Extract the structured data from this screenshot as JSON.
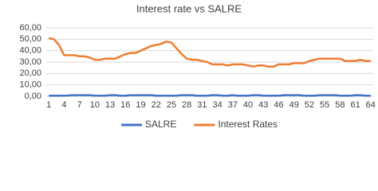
{
  "chart_data": {
    "type": "line",
    "title": "Interest rate vs SALRE",
    "categories": [
      "1",
      null,
      null,
      "4",
      null,
      null,
      "7",
      null,
      null,
      "10",
      null,
      null,
      "13",
      null,
      null,
      "16",
      null,
      null,
      "19",
      null,
      null,
      "22",
      null,
      null,
      "25",
      null,
      null,
      "28",
      null,
      null,
      "31",
      null,
      null,
      "34",
      null,
      null,
      "37",
      null,
      null,
      "40",
      null,
      null,
      "43",
      null,
      null,
      "46",
      null,
      null,
      "49",
      null,
      null,
      "52",
      null,
      null,
      "55",
      null,
      null,
      "58",
      null,
      null,
      "61",
      null,
      null,
      "64"
    ],
    "series": [
      {
        "name": "SALRE",
        "color": "#4472c4",
        "values": [
          0.5,
          0.5,
          0.5,
          0.5,
          0.8,
          1,
          1,
          1,
          1,
          0.5,
          0.5,
          0.5,
          1,
          1,
          0.5,
          0.5,
          1,
          1,
          1,
          1,
          1,
          0.5,
          0.5,
          0.5,
          0.5,
          0.5,
          1,
          1,
          1,
          0.5,
          0.5,
          0.5,
          1,
          1,
          0.5,
          0.5,
          1,
          0.5,
          0.5,
          0.5,
          1,
          1,
          0.5,
          0.5,
          0.5,
          0.5,
          1,
          1,
          1,
          1,
          0.5,
          0.5,
          0.5,
          1,
          1,
          1,
          1,
          0.5,
          0.5,
          0.5,
          1,
          1,
          0.5,
          0.5
        ]
      },
      {
        "name": "Interest Rates",
        "color": "#ed7d31",
        "values": [
          51,
          50,
          45,
          36,
          36,
          36,
          35,
          35,
          34,
          32,
          32,
          33,
          33,
          33,
          35,
          37,
          38,
          38,
          40,
          42,
          44,
          45,
          46,
          48,
          47,
          42,
          37,
          33,
          32,
          32,
          31,
          30,
          28,
          28,
          28,
          27,
          28,
          28,
          28,
          27,
          26,
          27,
          27,
          26,
          26,
          28,
          28,
          28,
          29,
          29,
          29,
          31,
          32,
          33,
          33,
          33,
          33,
          33,
          31,
          31,
          31,
          32,
          31,
          31
        ]
      }
    ],
    "ylim": [
      0,
      60
    ],
    "yticks": [
      {
        "value": 0,
        "label": "0,00"
      },
      {
        "value": 10,
        "label": "10,00"
      },
      {
        "value": 20,
        "label": "20,00"
      },
      {
        "value": 30,
        "label": "30,00"
      },
      {
        "value": 40,
        "label": "40,00"
      },
      {
        "value": 50,
        "label": "50,00"
      },
      {
        "value": 60,
        "label": "60,00"
      }
    ],
    "grid": true
  }
}
